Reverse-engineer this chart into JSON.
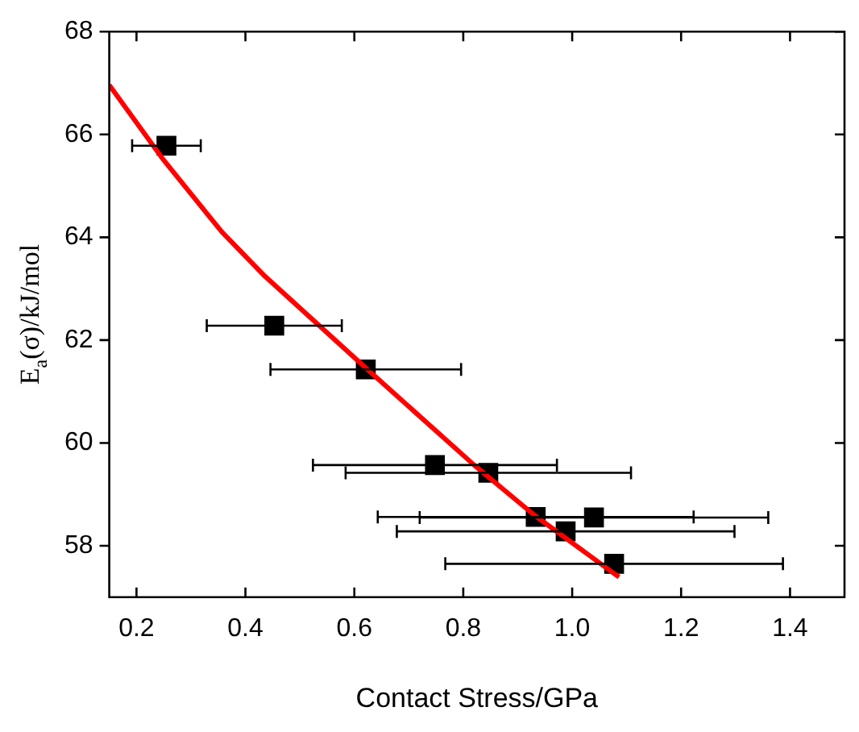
{
  "chart_data": {
    "type": "scatter",
    "xlabel": "Contact Stress/GPa",
    "ylabel": "E$_{a}$(σ)/kJ/mol",
    "xlim": [
      0.15,
      1.5
    ],
    "xticks": [
      0.2,
      0.4,
      0.6,
      0.8,
      {
        "value": 1,
        "label": "1.0"
      },
      1.2,
      1.4
    ],
    "ylim": [
      57,
      68
    ],
    "yticks": [
      58,
      60,
      62,
      64,
      66,
      68
    ],
    "marker": "square",
    "legend": false,
    "series": [
      {
        "type": "scatter",
        "color": "#000000",
        "x": [
          0.255,
          0.453,
          0.621,
          0.748,
          0.846,
          0.933,
          1.04,
          0.988,
          1.077
        ],
        "values": [
          65.78,
          62.28,
          61.43,
          59.57,
          59.42,
          58.56,
          58.55,
          58.28,
          57.65
        ],
        "xerrors": [
          0.063,
          0.124,
          0.175,
          0.224,
          0.262,
          0.29,
          0.32,
          0.31,
          0.31
        ]
      },
      {
        "type": "line",
        "color": "#ff0000",
        "marker": "none",
        "x": [
          0.15,
          0.25,
          0.357,
          0.436,
          0.624,
          0.82,
          0.93,
          1.086
        ],
        "values": [
          66.96,
          65.5,
          64.1,
          63.24,
          61.43,
          59.57,
          58.6,
          57.39
        ]
      }
    ]
  }
}
